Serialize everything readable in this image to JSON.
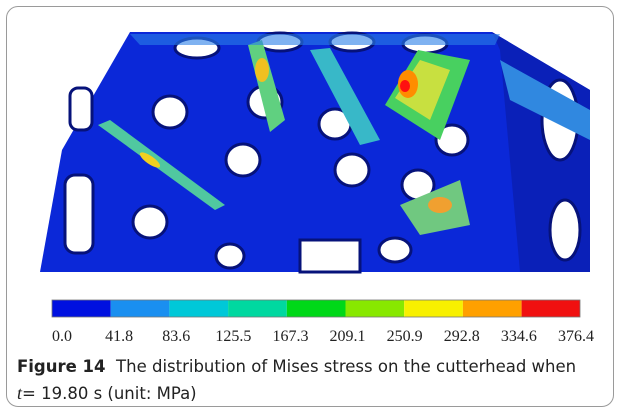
{
  "figure": {
    "colorbar": {
      "labels": [
        "0.0",
        "41.8",
        "83.6",
        "125.5",
        "167.3",
        "209.1",
        "250.9",
        "292.8",
        "334.6",
        "376.4"
      ]
    },
    "caption": {
      "label": "Figure 14",
      "text_1": "The distribution of Mises stress on the cutterhead when",
      "variable": "t",
      "text_2": "= 19.80 s (unit: MPa)"
    }
  }
}
